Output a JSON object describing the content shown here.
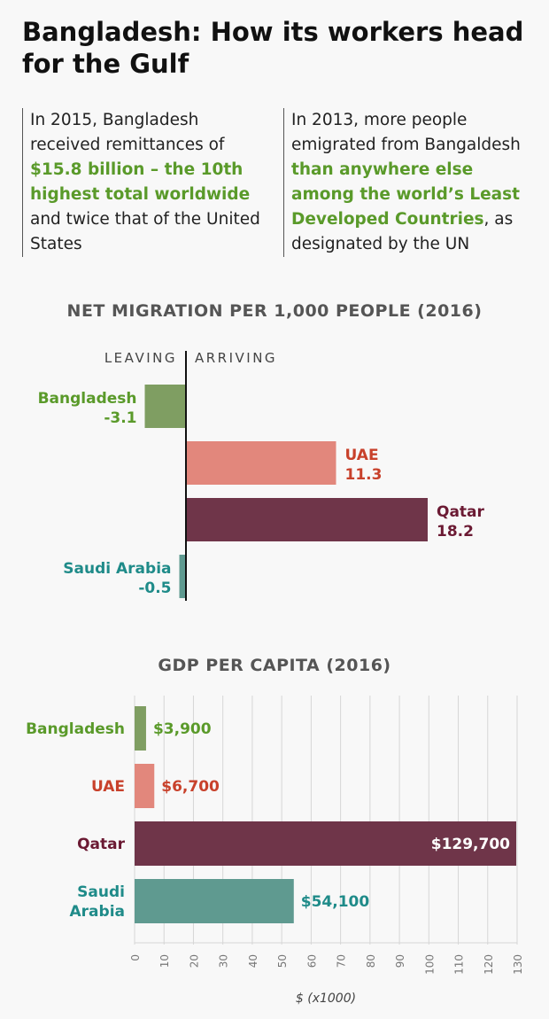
{
  "title": "Bangladesh: How its workers head for the Gulf",
  "facts": [
    {
      "pre": "In 2015, Bangladesh received remittances of ",
      "highlight": "$15.8 billion – the 10th highest total worldwide",
      "post": " and twice that of the United States"
    },
    {
      "pre": "In 2013, more people emigrated from Bangaldesh ",
      "highlight": "than anywhere else among the world’s Least Developed Countries",
      "post": ", as designated by the UN"
    }
  ],
  "colors": {
    "Bangladesh": {
      "bar": "#7f9e62",
      "text": "#5a9a2a"
    },
    "UAE": {
      "bar": "#e2877c",
      "text": "#c8412b"
    },
    "Qatar": {
      "bar": "#6f3549",
      "text": "#6b1a33"
    },
    "Saudi Arabia": {
      "bar": "#5f9a90",
      "text": "#1f8b89"
    }
  },
  "chart_data": [
    {
      "type": "bar",
      "orientation": "horizontal",
      "title": "NET MIGRATION PER 1,000 PEOPLE (2016)",
      "left_label": "LEAVING",
      "right_label": "ARRIVING",
      "categories": [
        "Bangladesh",
        "UAE",
        "Qatar",
        "Saudi Arabia"
      ],
      "values": [
        -3.1,
        11.3,
        18.2,
        -0.5
      ],
      "value_labels": [
        "-3.1",
        "11.3",
        "18.2",
        "-0.5"
      ],
      "xlim": [
        -3.1,
        18.2
      ]
    },
    {
      "type": "bar",
      "orientation": "horizontal",
      "title": "GDP PER CAPITA (2016)",
      "xlabel": "$ (x1000)",
      "categories": [
        "Bangladesh",
        "UAE",
        "Qatar",
        "Saudi Arabia"
      ],
      "category_labels": [
        [
          "Bangladesh"
        ],
        [
          "UAE"
        ],
        [
          "Qatar"
        ],
        [
          "Saudi",
          "Arabia"
        ]
      ],
      "values": [
        3.9,
        6.7,
        129.7,
        54.1
      ],
      "value_labels": [
        "$3,900",
        "$6,700",
        "$129,700",
        "$54,100"
      ],
      "xlim": [
        0,
        130
      ],
      "xticks": [
        0,
        10,
        20,
        30,
        40,
        50,
        60,
        70,
        80,
        90,
        100,
        110,
        120,
        130
      ],
      "grid": true
    }
  ]
}
